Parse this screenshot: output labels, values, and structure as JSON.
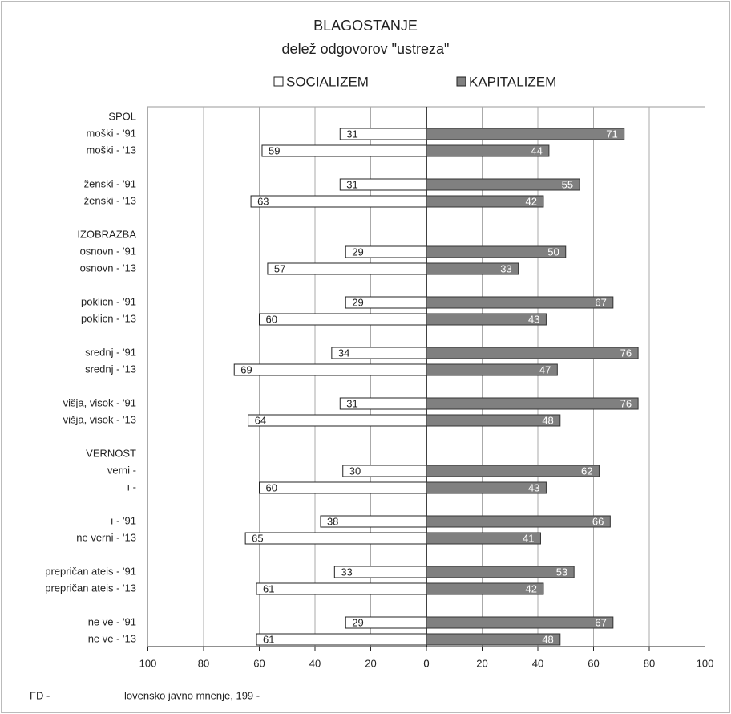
{
  "chart_data": {
    "type": "diverging-bar",
    "title": "BLAGOSTANJE",
    "subtitle": "delež odgovorov \"ustreza\"",
    "categories": [
      "SPOL",
      "moški - '91",
      "moški - '13",
      "ženski - '91",
      "ženski - '13",
      "IZOBRAZBA",
      "osnovn - '91",
      "osnovn - '13",
      "poklicn - '91",
      "poklicn - '13",
      "srednj - '91",
      "srednj - '13",
      "višja, visok - '91",
      "višja, visok - '13",
      "VERNOST",
      "verni -",
      "ı -",
      "ı - '91",
      "ne verni - '13",
      "prepričan ateis - '91",
      "prepričan ateis - '13",
      "ne ve - '91",
      "ne ve - '13"
    ],
    "series": [
      {
        "name": "SOCIALIZEM",
        "color": "#ffffff",
        "side": "left",
        "values": [
          null,
          31,
          59,
          31,
          63,
          null,
          29,
          57,
          29,
          60,
          34,
          69,
          31,
          64,
          null,
          30,
          60,
          38,
          65,
          33,
          61,
          29,
          61
        ]
      },
      {
        "name": "KAPITALIZEM",
        "color": "#808080",
        "side": "right",
        "values": [
          null,
          71,
          44,
          55,
          42,
          null,
          50,
          33,
          67,
          43,
          76,
          47,
          76,
          48,
          null,
          62,
          43,
          66,
          41,
          53,
          42,
          67,
          48
        ]
      }
    ],
    "xlim": [
      0,
      100
    ],
    "xticks": [
      0,
      20,
      40,
      60,
      80,
      100
    ],
    "grid": true,
    "footer": [
      "FD -",
      "lovensko javno mnenje, 199 -"
    ]
  }
}
